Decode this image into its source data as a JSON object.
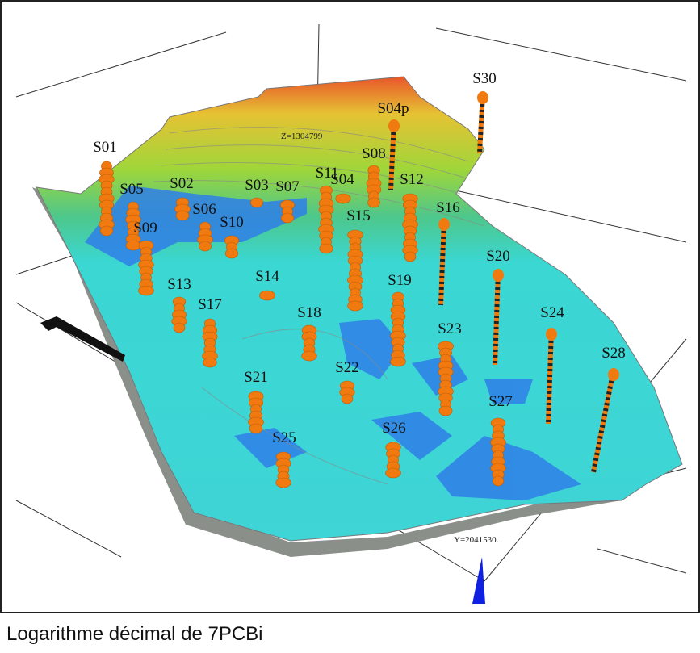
{
  "figure": {
    "wells": [
      {
        "label": "S01"
      },
      {
        "label": "S05"
      },
      {
        "label": "S02"
      },
      {
        "label": "S06"
      },
      {
        "label": "S03"
      },
      {
        "label": "S07"
      },
      {
        "label": "S10"
      },
      {
        "label": "S09"
      },
      {
        "label": "S11"
      },
      {
        "label": "S04"
      },
      {
        "label": "S08"
      },
      {
        "label": "S04p"
      },
      {
        "label": "S30"
      },
      {
        "label": "S12"
      },
      {
        "label": "S15"
      },
      {
        "label": "S16"
      },
      {
        "label": "S13"
      },
      {
        "label": "S14"
      },
      {
        "label": "S17"
      },
      {
        "label": "S18"
      },
      {
        "label": "S19"
      },
      {
        "label": "S20"
      },
      {
        "label": "S24"
      },
      {
        "label": "S23"
      },
      {
        "label": "S28"
      },
      {
        "label": "S21"
      },
      {
        "label": "S22"
      },
      {
        "label": "S27"
      },
      {
        "label": "S26"
      },
      {
        "label": "S25"
      }
    ],
    "annotations": {
      "z_label": "Z=1304799",
      "y_label": "Y=2041530."
    },
    "caption": "Logarithme décimal de 7PCBi"
  }
}
